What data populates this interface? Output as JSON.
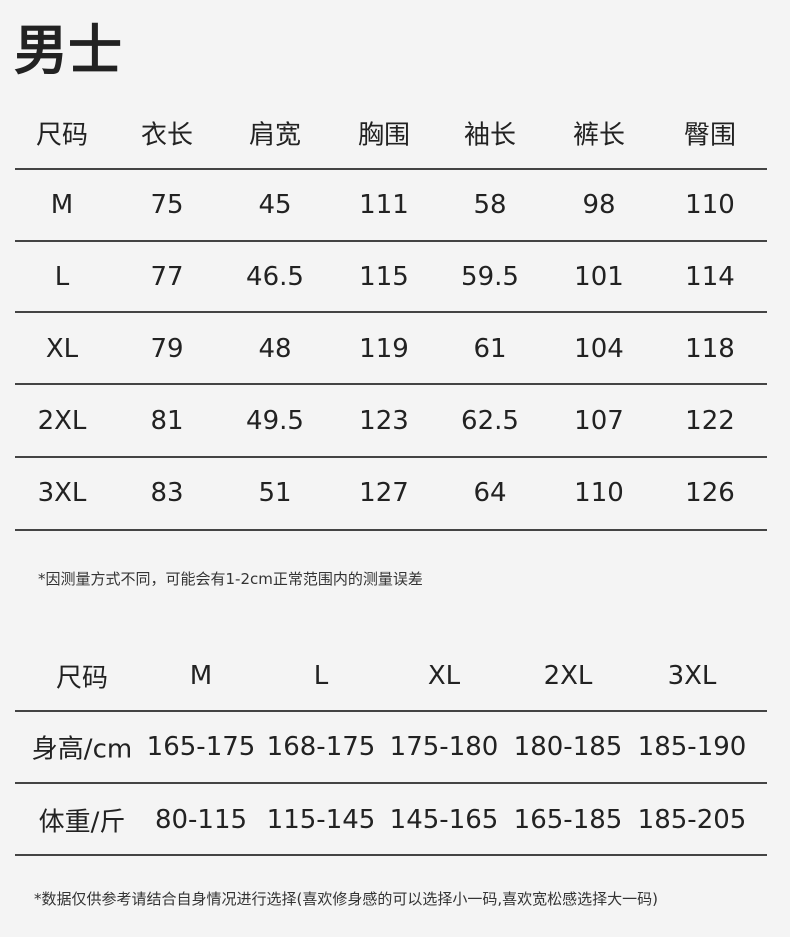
{
  "title": "男士",
  "table1": {
    "headers": [
      "尺码",
      "衣长",
      "肩宽",
      "胸围",
      "袖长",
      "裤长",
      "臀围"
    ],
    "rows": [
      [
        "M",
        "75",
        "45",
        "111",
        "58",
        "98",
        "110"
      ],
      [
        "L",
        "77",
        "46.5",
        "115",
        "59.5",
        "101",
        "114"
      ],
      [
        "XL",
        "79",
        "48",
        "119",
        "61",
        "104",
        "118"
      ],
      [
        "2XL",
        "81",
        "49.5",
        "123",
        "62.5",
        "107",
        "122"
      ],
      [
        "3XL",
        "83",
        "51",
        "127",
        "64",
        "110",
        "126"
      ]
    ]
  },
  "note1": "*因测量方式不同，可能会有1-2cm正常范围内的测量误差",
  "table2": {
    "headers": [
      "尺码",
      "M",
      "L",
      "XL",
      "2XL",
      "3XL"
    ],
    "rows": [
      [
        "身高/cm",
        "165-175",
        "168-175",
        "175-180",
        "180-185",
        "185-190"
      ],
      [
        "体重/斤",
        "80-115",
        "115-145",
        "145-165",
        "165-185",
        "185-205"
      ]
    ]
  },
  "note2": "*数据仅供参考请结合自身情况进行选择(喜欢修身感的可以选择小一码,喜欢宽松感选择大一码)"
}
